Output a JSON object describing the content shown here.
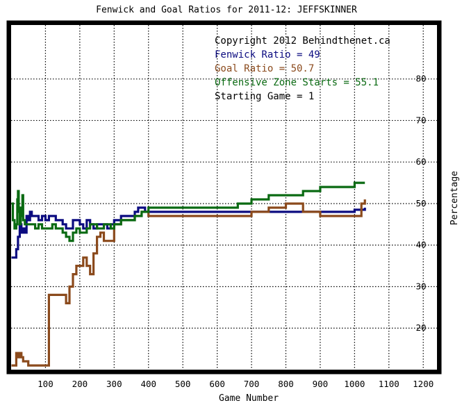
{
  "chart_data": {
    "type": "line",
    "title": "Fenwick and Goal Ratios for 2011-12: JEFFSKINNER",
    "xlabel": "Game Number",
    "ylabel": "Percentage",
    "xlim": [
      0,
      1240
    ],
    "ylim": [
      10,
      93
    ],
    "x_ticks": [
      100,
      200,
      300,
      400,
      500,
      600,
      700,
      800,
      900,
      1000,
      1100,
      1200
    ],
    "y_ticks": [
      20,
      30,
      40,
      50,
      60,
      70,
      80
    ],
    "grid": true,
    "colors": {
      "background": "#ffffff",
      "frame_bg": "#000000",
      "fenwick": "#0b0b80",
      "goal": "#8b4a1c",
      "ozs": "#0a6a12",
      "text": "#000000"
    },
    "annotations": [
      {
        "text": "Copyright 2012 Behindthenet.ca",
        "color": "#000000"
      },
      {
        "text": "Fenwick Ratio = 49",
        "color": "#0b0b80"
      },
      {
        "text": "Goal Ratio = 50.7",
        "color": "#8b4a1c"
      },
      {
        "text": "Offensive Zone Starts = 55.1",
        "color": "#0a6a12"
      },
      {
        "text": "Starting Game = 1",
        "color": "#000000"
      }
    ],
    "series": [
      {
        "key": "fenwick",
        "x": [
          1,
          10,
          15,
          20,
          25,
          30,
          35,
          40,
          45,
          50,
          55,
          60,
          70,
          80,
          90,
          100,
          110,
          120,
          130,
          140,
          150,
          160,
          170,
          180,
          190,
          200,
          210,
          220,
          230,
          240,
          250,
          260,
          270,
          280,
          290,
          300,
          320,
          340,
          360,
          370,
          380,
          390,
          400,
          450,
          500,
          550,
          600,
          650,
          700,
          750,
          800,
          850,
          900,
          950,
          1000,
          1030
        ],
        "y": [
          37,
          37,
          39,
          42,
          45,
          43,
          44,
          43,
          47,
          46,
          48,
          47,
          47,
          46,
          47,
          46,
          47,
          47,
          46,
          46,
          45,
          44,
          44,
          46,
          46,
          45,
          44,
          46,
          45,
          44,
          45,
          45,
          45,
          44,
          45,
          46,
          47,
          47,
          48,
          49,
          49,
          48,
          48,
          48,
          48,
          48,
          48,
          48,
          48,
          48,
          48,
          48,
          48,
          48,
          48.5,
          49
        ]
      },
      {
        "key": "goal",
        "x": [
          1,
          10,
          15,
          20,
          25,
          30,
          35,
          40,
          45,
          50,
          60,
          80,
          100,
          110,
          120,
          130,
          140,
          150,
          160,
          170,
          180,
          190,
          200,
          210,
          220,
          230,
          240,
          250,
          260,
          270,
          280,
          290,
          300,
          320,
          340,
          360,
          380,
          400,
          450,
          500,
          550,
          600,
          650,
          680,
          700,
          750,
          800,
          850,
          900,
          950,
          1000,
          1020,
          1030
        ],
        "y": [
          11,
          11,
          14,
          13,
          14,
          13,
          12,
          12,
          12,
          11,
          11,
          11,
          11,
          28,
          28,
          28,
          28,
          28,
          26,
          30,
          33,
          35,
          35,
          37,
          35,
          33,
          38,
          42,
          43,
          41,
          41,
          41,
          45,
          46,
          46,
          47,
          48,
          47,
          47,
          47,
          47,
          47,
          47,
          47,
          48,
          49,
          50,
          48,
          47,
          47,
          47,
          50,
          51
        ]
      },
      {
        "key": "ozs",
        "x": [
          1,
          5,
          10,
          15,
          18,
          20,
          22,
          25,
          28,
          30,
          33,
          35,
          40,
          50,
          60,
          70,
          80,
          90,
          100,
          110,
          120,
          130,
          140,
          150,
          160,
          170,
          180,
          190,
          200,
          210,
          220,
          230,
          240,
          250,
          260,
          270,
          280,
          290,
          300,
          320,
          340,
          360,
          380,
          400,
          450,
          500,
          550,
          600,
          650,
          660,
          700,
          750,
          800,
          850,
          900,
          950,
          1000,
          1030
        ],
        "y": [
          50,
          46,
          44,
          45,
          51,
          53,
          48,
          45,
          49,
          47,
          52,
          46,
          45,
          45,
          45,
          44,
          45,
          44,
          44,
          44,
          45,
          44,
          44,
          43,
          42,
          41,
          43,
          44,
          43,
          43,
          44,
          45,
          45,
          44,
          44,
          45,
          45,
          44,
          45,
          46,
          46,
          47,
          48,
          49,
          49,
          49,
          49,
          49,
          49,
          50,
          51,
          52,
          52,
          53,
          54,
          54,
          55,
          55
        ]
      }
    ]
  }
}
